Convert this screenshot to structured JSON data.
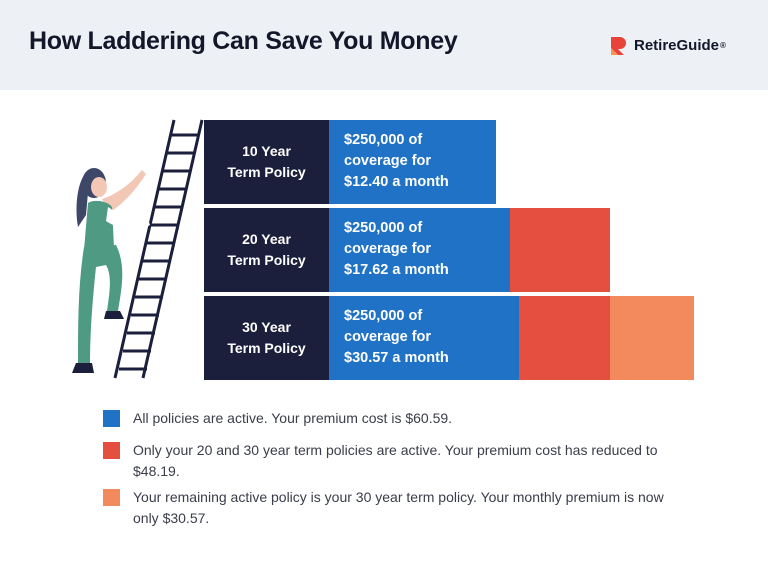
{
  "header": {
    "title": "How Laddering Can Save You Money",
    "brand": "RetireGuide",
    "brand_mark": "®",
    "colors": {
      "background": "#edf1f6",
      "logo_red": "#e8433a",
      "logo_orange": "#f7954f"
    }
  },
  "policies": [
    {
      "term_line1": "10 Year",
      "term_line2": "Term Policy",
      "desc_line1": "$250,000 of",
      "desc_line2": "coverage for",
      "desc_line3": "$12.40 a month"
    },
    {
      "term_line1": "20 Year",
      "term_line2": "Term Policy",
      "desc_line1": "$250,000 of",
      "desc_line2": "coverage for",
      "desc_line3": "$17.62 a month"
    },
    {
      "term_line1": "30 Year",
      "term_line2": "Term Policy",
      "desc_line1": "$250,000 of",
      "desc_line2": "coverage for",
      "desc_line3": "$30.57 a month"
    }
  ],
  "legend": [
    {
      "color": "#1f72c6",
      "text": "All policies are active. Your premium cost is $60.59."
    },
    {
      "color": "#e44f3f",
      "text": "Only your 20 and 30 year term policies are active. Your premium cost has reduced to $48.19."
    },
    {
      "color": "#f38a5d",
      "text": "Your remaining active policy is your 30 year term policy. Your monthly premium is now only $30.57."
    }
  ],
  "colors": {
    "label_bg": "#1b1f3b",
    "blue": "#1f72c6",
    "red": "#e44f3f",
    "orange": "#f38a5d"
  },
  "icons": [
    "retireguide-logo-icon",
    "woman-climbing-ladder-illustration"
  ]
}
